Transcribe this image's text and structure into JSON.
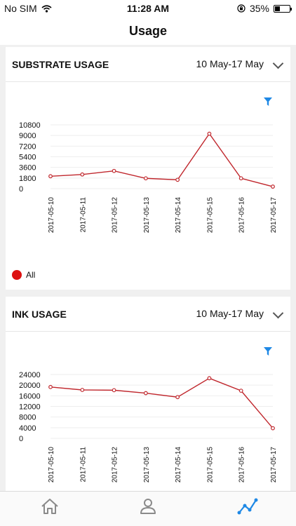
{
  "status": {
    "carrier": "No SIM",
    "time": "11:28 AM",
    "battery": "35%",
    "battery_level": 0.35
  },
  "nav": {
    "title": "Usage"
  },
  "substrate": {
    "title": "SUBSTRATE USAGE",
    "range": "10 May-17 May",
    "legend": "All"
  },
  "ink": {
    "title": "INK USAGE",
    "range": "10 May-17 May"
  },
  "colors": {
    "line": "#c0272d",
    "accent": "#1e88e5",
    "legend_dot": "#dd1111",
    "tab_active": "#1e88e5",
    "tab_inactive": "#8a8a8a"
  },
  "tabs": [
    {
      "name": "home-icon"
    },
    {
      "name": "user-icon"
    },
    {
      "name": "line-chart-icon",
      "active": true
    }
  ],
  "chart_data": [
    {
      "type": "line",
      "categories": [
        "2017-05-10",
        "2017-05-11",
        "2017-05-12",
        "2017-05-13",
        "2017-05-14",
        "2017-05-15",
        "2017-05-16",
        "2017-05-17"
      ],
      "series": [
        {
          "name": "All",
          "values": [
            2100,
            2400,
            3000,
            1750,
            1500,
            9300,
            1750,
            350
          ]
        }
      ],
      "yticks": [
        0,
        1800,
        3600,
        5400,
        7200,
        9000,
        10800
      ],
      "ylim": [
        0,
        10800
      ],
      "grid": true
    },
    {
      "type": "line",
      "categories": [
        "2017-05-10",
        "2017-05-11",
        "2017-05-12",
        "2017-05-13",
        "2017-05-14",
        "2017-05-15",
        "2017-05-16",
        "2017-05-17"
      ],
      "series": [
        {
          "values": [
            19300,
            18200,
            18100,
            17000,
            15500,
            22600,
            17900,
            3800
          ]
        }
      ],
      "yticks": [
        0,
        4000,
        8000,
        12000,
        16000,
        20000,
        24000
      ],
      "ylim": [
        0,
        24000
      ],
      "grid": true
    }
  ]
}
